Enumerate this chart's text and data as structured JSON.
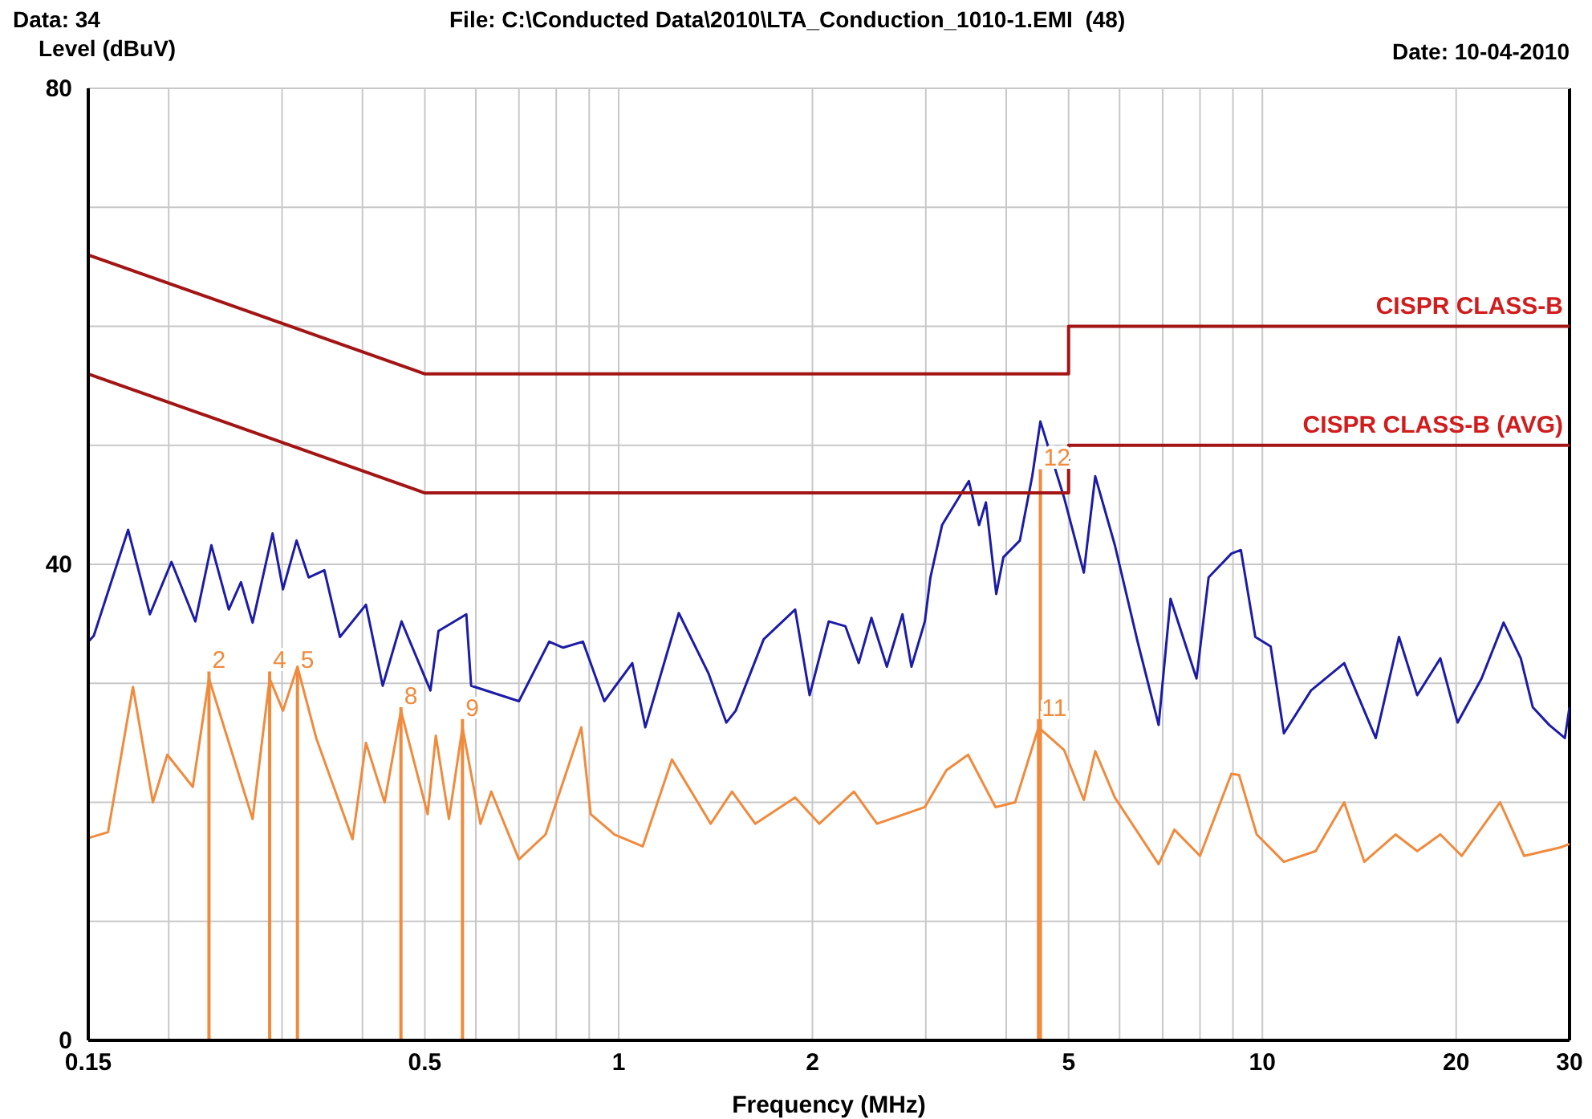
{
  "chart_data": {
    "type": "line",
    "title": "File: C:\\Conducted Data\\2010\\LTA_Conduction_1010-1.EMI  (48)",
    "xlabel": "Frequency (MHz)",
    "ylabel": "Level (dBuV)",
    "log": "x",
    "grid": true,
    "marker": "none",
    "line_style": "solid",
    "xlim": [
      0.15,
      30
    ],
    "xticks": [
      0.15,
      {
        "value": 0.2,
        "label": null
      },
      {
        "value": 0.3,
        "label": null
      },
      {
        "value": 0.4,
        "label": null
      },
      0.5,
      {
        "value": 0.6,
        "label": null
      },
      {
        "value": 0.7,
        "label": null
      },
      {
        "value": 0.8,
        "label": null
      },
      {
        "value": 0.9,
        "label": null
      },
      1,
      2,
      {
        "value": 3,
        "label": null
      },
      {
        "value": 4,
        "label": null
      },
      5,
      {
        "value": 6,
        "label": null
      },
      {
        "value": 7,
        "label": null
      },
      {
        "value": 8,
        "label": null
      },
      {
        "value": 9,
        "label": null
      },
      10,
      20,
      30
    ],
    "ylim": [
      0,
      80
    ],
    "yticks": [
      0,
      {
        "value": 10,
        "label": null
      },
      {
        "value": 20,
        "label": null
      },
      {
        "value": 30,
        "label": null
      },
      40,
      {
        "value": 50,
        "label": null
      },
      {
        "value": 60,
        "label": null
      },
      {
        "value": 70,
        "label": null
      },
      80
    ],
    "series": [
      {
        "color": "#1c1ca6",
        "x": [
          0.15,
          0.153,
          0.173,
          0.187,
          0.202,
          0.22,
          0.233,
          0.248,
          0.259,
          0.27,
          0.29,
          0.301,
          0.316,
          0.33,
          0.349,
          0.369,
          0.405,
          0.43,
          0.46,
          0.51,
          0.525,
          0.58,
          0.59,
          0.7,
          0.78,
          0.82,
          0.88,
          0.95,
          1.05,
          1.1,
          1.24,
          1.38,
          1.47,
          1.52,
          1.68,
          1.88,
          1.98,
          2.12,
          2.25,
          2.36,
          2.47,
          2.61,
          2.76,
          2.85,
          2.99,
          3.05,
          3.18,
          3.5,
          3.63,
          3.72,
          3.86,
          3.96,
          4.2,
          4.39,
          4.52,
          4.92,
          5.28,
          5.5,
          5.9,
          6.4,
          6.9,
          7.2,
          7.9,
          8.25,
          8.95,
          9.26,
          9.75,
          10.3,
          10.8,
          11.9,
          13.4,
          15,
          16.3,
          17.4,
          18.9,
          20.1,
          21.9,
          23.7,
          25.2,
          26.3,
          27.9,
          29.5,
          30
        ],
        "values": [
          33.5,
          34,
          42.9,
          35.8,
          40.2,
          35.2,
          41.6,
          36.2,
          38.5,
          35.1,
          42.6,
          37.9,
          42,
          38.9,
          39.5,
          33.9,
          36.6,
          29.8,
          35.2,
          29.4,
          34.4,
          35.8,
          29.8,
          28.5,
          33.5,
          33,
          33.5,
          28.5,
          31.7,
          26.3,
          35.9,
          30.8,
          26.7,
          27.7,
          33.7,
          36.2,
          29,
          35.2,
          34.8,
          31.7,
          35.5,
          31.4,
          35.8,
          31.4,
          35.2,
          38.9,
          43.3,
          47,
          43.3,
          45.2,
          37.5,
          40.6,
          42,
          47.4,
          52,
          45.6,
          39.3,
          47.4,
          41.6,
          33.5,
          26.5,
          37.1,
          30.4,
          38.9,
          40.9,
          41.2,
          33.9,
          33.1,
          25.8,
          29.4,
          31.7,
          25.4,
          33.9,
          29,
          32.1,
          26.7,
          30.4,
          35.1,
          32.1,
          28,
          26.5,
          25.4,
          28
        ]
      },
      {
        "color": "#f08a3c",
        "x": [
          0.15,
          0.161,
          0.176,
          0.189,
          0.199,
          0.218,
          0.231,
          0.27,
          0.287,
          0.301,
          0.317,
          0.339,
          0.386,
          0.405,
          0.433,
          0.459,
          0.505,
          0.52,
          0.545,
          0.572,
          0.61,
          0.634,
          0.7,
          0.77,
          0.875,
          0.905,
          0.985,
          1.09,
          1.21,
          1.39,
          1.5,
          1.63,
          1.88,
          2.05,
          2.32,
          2.52,
          2.99,
          3.23,
          3.49,
          3.85,
          4.13,
          4.49,
          4.92,
          5.28,
          5.5,
          5.9,
          6.9,
          7.3,
          8.0,
          8.95,
          9.2,
          9.8,
          10.8,
          12.1,
          13.4,
          14.4,
          16.1,
          17.4,
          18.9,
          20.4,
          23.4,
          25.5,
          29,
          30
        ],
        "values": [
          17,
          17.5,
          29.7,
          20,
          24,
          21.3,
          30.4,
          18.6,
          30.4,
          27.7,
          31.4,
          25.4,
          16.9,
          25,
          20,
          27.7,
          19,
          25.6,
          18.6,
          26.3,
          18.2,
          20.9,
          15.2,
          17.3,
          26.3,
          19,
          17.3,
          16.3,
          23.6,
          18.2,
          20.9,
          18.2,
          20.4,
          18.2,
          20.9,
          18.2,
          19.6,
          22.7,
          24,
          19.6,
          20,
          26.3,
          24.4,
          20.2,
          24.3,
          20.4,
          14.8,
          17.7,
          15.5,
          22.4,
          22.3,
          17.3,
          15,
          15.9,
          20,
          15,
          17.3,
          15.9,
          17.3,
          15.5,
          20,
          15.5,
          16.2,
          16.5
        ]
      },
      {
        "name": "CISPR CLASS-B",
        "color": "#a31515",
        "x": [
          0.15,
          0.5,
          5,
          5,
          30
        ],
        "values": [
          66,
          56,
          56,
          60,
          60
        ]
      },
      {
        "name": "CISPR CLASS-B (AVG)",
        "color": "#a31515",
        "x": [
          0.15,
          0.5,
          5,
          5,
          30
        ],
        "values": [
          56,
          46,
          46,
          50,
          50
        ]
      }
    ],
    "annotations": [
      "Data: 34",
      "Date: 10-04-2010",
      {
        "text": "2",
        "x": 0.231,
        "y": 31
      },
      {
        "text": "4",
        "x": 0.287,
        "y": 31
      },
      {
        "text": "5",
        "x": 0.317,
        "y": 31
      },
      {
        "text": "8",
        "x": 0.459,
        "y": 28
      },
      {
        "text": "9",
        "x": 0.572,
        "y": 27
      },
      {
        "text": "11",
        "x": 4.49,
        "y": 27
      },
      {
        "text": "12",
        "x": 4.52,
        "y": 48
      }
    ]
  }
}
